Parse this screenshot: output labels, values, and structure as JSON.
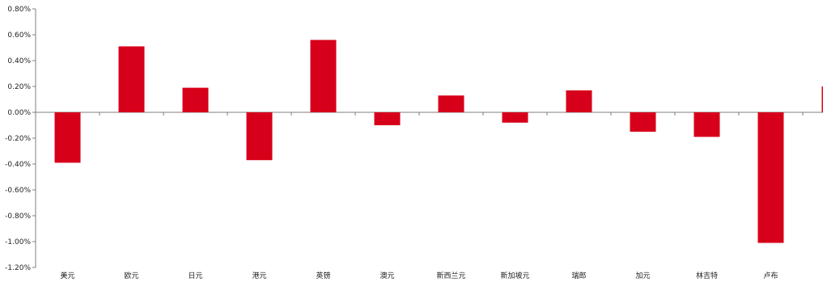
{
  "chart_data": {
    "type": "bar",
    "title": "",
    "xlabel": "",
    "ylabel": "",
    "categories": [
      "美元",
      "欧元",
      "日元",
      "港元",
      "英镑",
      "澳元",
      "新西兰元",
      "新加坡元",
      "瑞郎",
      "加元",
      "林吉特",
      "卢布",
      ""
    ],
    "values": [
      -0.39,
      0.51,
      0.19,
      -0.37,
      0.56,
      -0.1,
      0.13,
      -0.08,
      0.17,
      -0.15,
      -0.19,
      -1.01,
      0.2
    ],
    "ylim": [
      -1.2,
      0.8
    ],
    "yticks": [
      0.8,
      0.6,
      0.4,
      0.2,
      0.0,
      -0.2,
      -0.4,
      -0.6,
      -0.8,
      -1.0,
      -1.2
    ],
    "ytick_labels": [
      "0.80%",
      "0.60%",
      "0.40%",
      "0.20%",
      "0.00%",
      "-0.20%",
      "-0.40%",
      "-0.60%",
      "-0.80%",
      "-1.00%",
      "-1.20%"
    ],
    "grid": false,
    "legend": "none",
    "bar_color": "#d7001a",
    "axis_color": "#7f7f7f"
  }
}
